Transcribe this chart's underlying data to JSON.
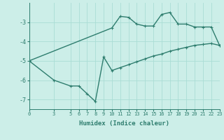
{
  "title": "",
  "xlabel": "Humidex (Indice chaleur)",
  "bg_color": "#cceee8",
  "line_color": "#2e7d6e",
  "grid_color": "#aaddd5",
  "axis_color": "#2e7d6e",
  "upper_x": [
    0,
    10,
    11,
    12,
    13,
    14,
    15,
    16,
    17,
    18,
    19,
    20,
    21,
    22,
    23
  ],
  "upper_y": [
    -5.0,
    -3.3,
    -2.7,
    -2.75,
    -3.1,
    -3.2,
    -3.2,
    -2.6,
    -2.5,
    -3.1,
    -3.1,
    -3.25,
    -3.25,
    -3.25,
    -4.2
  ],
  "lower_x": [
    0,
    3,
    5,
    6,
    7,
    8,
    9,
    10,
    11,
    12,
    13,
    14,
    15,
    16,
    17,
    18,
    19,
    20,
    21,
    22,
    23
  ],
  "lower_y": [
    -5.0,
    -6.0,
    -6.3,
    -6.3,
    -6.7,
    -7.1,
    -4.8,
    -5.5,
    -5.35,
    -5.2,
    -5.05,
    -4.9,
    -4.75,
    -4.65,
    -4.5,
    -4.4,
    -4.3,
    -4.2,
    -4.15,
    -4.1,
    -4.2
  ],
  "xlim": [
    0,
    23
  ],
  "ylim": [
    -7.5,
    -2.0
  ],
  "xticks": [
    0,
    3,
    5,
    6,
    7,
    8,
    9,
    10,
    11,
    12,
    13,
    14,
    15,
    16,
    17,
    18,
    19,
    20,
    21,
    22,
    23
  ],
  "yticks": [
    -7,
    -6,
    -5,
    -4,
    -3
  ],
  "marker_size": 2.5,
  "line_width": 1.0
}
